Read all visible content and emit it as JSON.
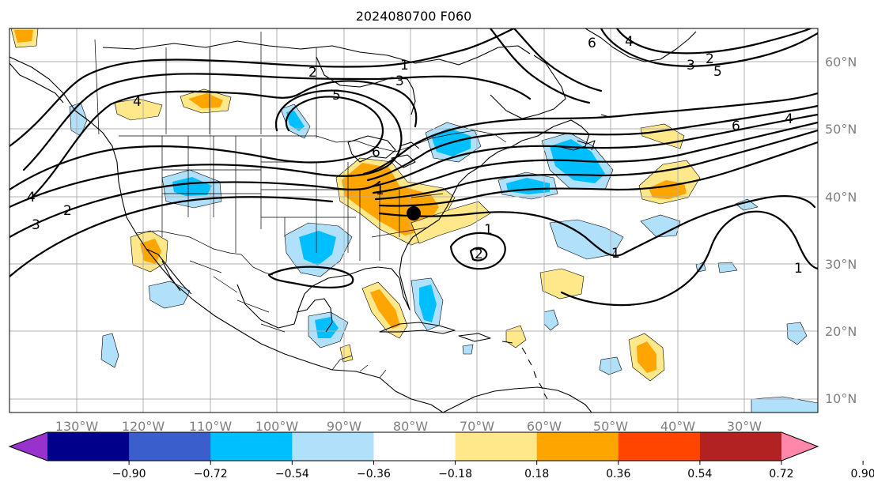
{
  "title": "2024080700 F060",
  "lat_labels": [
    "10°N",
    "20°N",
    "30°N",
    "40°N",
    "50°N",
    "60°N"
  ],
  "lon_labels": [
    "130°W",
    "120°W",
    "110°W",
    "100°W",
    "90°W",
    "80°W",
    "70°W",
    "60°W",
    "50°W",
    "40°W",
    "30°W"
  ],
  "colorbar": {
    "ticks": [
      "−0.90",
      "−0.72",
      "−0.54",
      "−0.36",
      "−0.18",
      "0.18",
      "0.36",
      "0.54",
      "0.72",
      "0.90"
    ],
    "colors": [
      "#9932cc",
      "#00008b",
      "#3a5fcd",
      "#00bfff",
      "#b0e0fa",
      "#ffffff",
      "#ffe88a",
      "#ffa500",
      "#ff4500",
      "#b22222",
      "#ff88aa"
    ]
  },
  "contour_labels": {
    "c1": "1",
    "c2": "2",
    "c3": "3",
    "c4": "4",
    "c5": "5",
    "c6": "6",
    "c7": "1",
    "c8": "3",
    "c9": "5",
    "c10": "2",
    "c11": "4",
    "c12": "6",
    "c13": "2",
    "c14": "3",
    "c15": "4",
    "c16": "1",
    "c17": "2",
    "c18": "1",
    "c19": "1",
    "c20": "6",
    "c21": "4"
  },
  "point_marker": "black-dot"
}
